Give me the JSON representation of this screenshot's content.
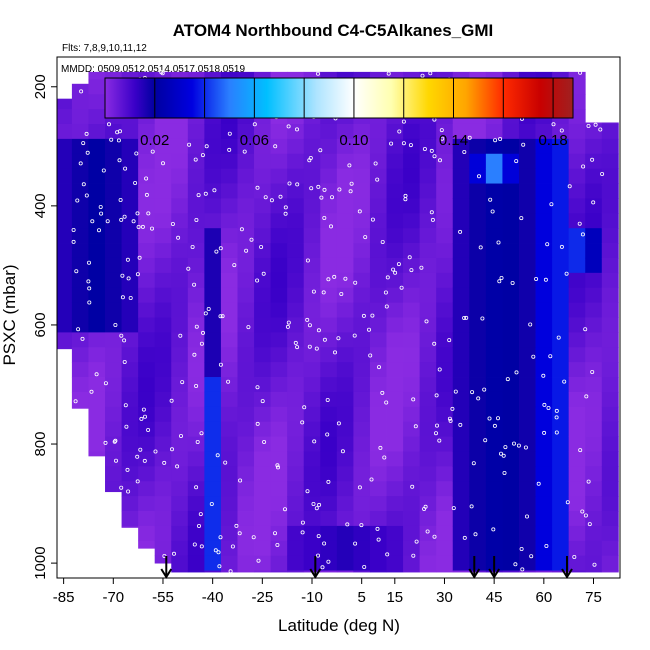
{
  "chart_data": {
    "type": "heatmap",
    "title": "ATOM4 Northbound C4-C5Alkanes_GMI",
    "flights_text": "Flts: 7,8,9,10,11,12",
    "dates_text": "MMDD: 0509,0512,0514,0517,0518,0519",
    "xlabel": "Latitude (deg N)",
    "ylabel": "PSXC (mbar)",
    "xlim": [
      -87,
      83
    ],
    "ylim": [
      1025,
      150
    ],
    "y_reversed": true,
    "x_ticks": [
      -85,
      -70,
      -55,
      -40,
      -25,
      -10,
      5,
      15,
      30,
      45,
      60,
      75
    ],
    "x_tick_labels": [
      "-85",
      "-70",
      "-55",
      "-40",
      "-25",
      "-10",
      "5",
      "15",
      "30",
      "45",
      "60",
      "75"
    ],
    "y_ticks": [
      200,
      400,
      600,
      800,
      1000
    ],
    "y_tick_labels": [
      "200",
      "400",
      "600",
      "800",
      "1000"
    ],
    "colorbar": {
      "range": [
        0.0,
        0.188
      ],
      "ticks": [
        0.02,
        0.06,
        0.1,
        0.14,
        0.18
      ],
      "tick_labels": [
        "0.02",
        "0.06",
        "0.10",
        "0.14",
        "0.18"
      ],
      "dividers": [
        0.02,
        0.04,
        0.06,
        0.08,
        0.1,
        0.12,
        0.14,
        0.16,
        0.18
      ],
      "stops": [
        {
          "v": 0.0,
          "c": "#8a2be2"
        },
        {
          "v": 0.012,
          "c": "#3a00c8"
        },
        {
          "v": 0.02,
          "c": "#0000a0"
        },
        {
          "v": 0.035,
          "c": "#0000e0"
        },
        {
          "v": 0.05,
          "c": "#2a7fff"
        },
        {
          "v": 0.065,
          "c": "#00bfff"
        },
        {
          "v": 0.085,
          "c": "#aee4ff"
        },
        {
          "v": 0.1,
          "c": "#ffffff"
        },
        {
          "v": 0.115,
          "c": "#ffffb0"
        },
        {
          "v": 0.13,
          "c": "#ffd700"
        },
        {
          "v": 0.145,
          "c": "#ffa500"
        },
        {
          "v": 0.16,
          "c": "#ff2a00"
        },
        {
          "v": 0.175,
          "c": "#c80000"
        },
        {
          "v": 0.188,
          "c": "#a02020"
        }
      ]
    },
    "arrows_lat": [
      -54,
      -9,
      39,
      45,
      67
    ],
    "heatmap": {
      "base_value": 0.005,
      "features": [
        {
          "lat": -38,
          "p_from": 700,
          "p_to": 1000,
          "width": 3,
          "value": 0.055
        },
        {
          "lat": -38,
          "p_from": 450,
          "p_to": 700,
          "width": 3,
          "value": 0.022
        },
        {
          "lat": -75,
          "p_from": 300,
          "p_to": 600,
          "width": 14,
          "value": 0.021
        },
        {
          "lat": 47,
          "p_from": 300,
          "p_to": 1000,
          "width": 14,
          "value": 0.023
        },
        {
          "lat": 63,
          "p_from": 300,
          "p_to": 1000,
          "width": 5,
          "value": 0.045
        },
        {
          "lat": 45,
          "p_from": 310,
          "p_to": 350,
          "width": 6,
          "value": 0.05
        },
        {
          "lat": 70,
          "p_from": 450,
          "p_to": 500,
          "width": 6,
          "value": 0.04
        },
        {
          "lat": 0,
          "p_from": 950,
          "p_to": 1000,
          "width": 20,
          "value": 0.015
        }
      ],
      "columns": [
        {
          "lat": -85,
          "top": 220,
          "bottom": 640
        },
        {
          "lat": -80,
          "top": 195,
          "bottom": 740
        },
        {
          "lat": -75,
          "top": 175,
          "bottom": 820
        },
        {
          "lat": -70,
          "top": 175,
          "bottom": 880
        },
        {
          "lat": -65,
          "top": 175,
          "bottom": 940
        },
        {
          "lat": -60,
          "top": 175,
          "bottom": 975
        },
        {
          "lat": -55,
          "top": 175,
          "bottom": 1000
        },
        {
          "lat": -50,
          "top": 175,
          "bottom": 1015
        },
        {
          "lat": -45,
          "top": 175,
          "bottom": 1015
        },
        {
          "lat": -40,
          "top": 175,
          "bottom": 1015
        },
        {
          "lat": -35,
          "top": 175,
          "bottom": 1015
        },
        {
          "lat": -30,
          "top": 175,
          "bottom": 1015
        },
        {
          "lat": -25,
          "top": 175,
          "bottom": 1015
        },
        {
          "lat": -20,
          "top": 175,
          "bottom": 1015
        },
        {
          "lat": -15,
          "top": 175,
          "bottom": 1015
        },
        {
          "lat": -10,
          "top": 175,
          "bottom": 1015
        },
        {
          "lat": -5,
          "top": 175,
          "bottom": 1015
        },
        {
          "lat": 0,
          "top": 175,
          "bottom": 1015
        },
        {
          "lat": 5,
          "top": 175,
          "bottom": 1015
        },
        {
          "lat": 10,
          "top": 175,
          "bottom": 1015
        },
        {
          "lat": 15,
          "top": 175,
          "bottom": 1015
        },
        {
          "lat": 20,
          "top": 175,
          "bottom": 1015
        },
        {
          "lat": 25,
          "top": 175,
          "bottom": 1015
        },
        {
          "lat": 30,
          "top": 175,
          "bottom": 1015
        },
        {
          "lat": 35,
          "top": 175,
          "bottom": 1015
        },
        {
          "lat": 40,
          "top": 175,
          "bottom": 1015
        },
        {
          "lat": 45,
          "top": 175,
          "bottom": 1015
        },
        {
          "lat": 50,
          "top": 175,
          "bottom": 1015
        },
        {
          "lat": 55,
          "top": 175,
          "bottom": 1015
        },
        {
          "lat": 60,
          "top": 175,
          "bottom": 1015
        },
        {
          "lat": 65,
          "top": 175,
          "bottom": 1015
        },
        {
          "lat": 70,
          "top": 175,
          "bottom": 1015
        },
        {
          "lat": 75,
          "top": 260,
          "bottom": 1015
        },
        {
          "lat": 80,
          "top": 260,
          "bottom": 1015
        }
      ]
    }
  }
}
